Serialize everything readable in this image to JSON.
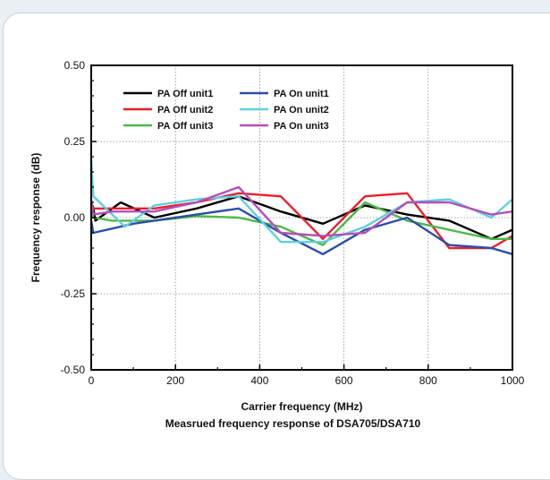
{
  "chart_data": {
    "type": "line",
    "title": "",
    "caption": "Measrued frequency response of DSA705/DSA710",
    "xlabel": "Carrier frequency (MHz)",
    "ylabel": "Frequency response (dB)",
    "xlim": [
      0,
      1000
    ],
    "ylim": [
      -0.5,
      0.5
    ],
    "xticks": [
      0,
      200,
      400,
      600,
      800,
      1000
    ],
    "xtick_labels": [
      "0",
      "200",
      "400",
      "600",
      "800",
      "1000"
    ],
    "yticks": [
      -0.5,
      -0.25,
      0,
      0.25,
      0.5
    ],
    "ytick_labels": [
      "-0.50",
      "-0.25",
      "0.00",
      "0.25",
      "0.50"
    ],
    "grid": true,
    "legend_position": "top-left",
    "series": [
      {
        "name": "PA Off unit1",
        "color": "#000000",
        "points": [
          [
            0,
            0.05
          ],
          [
            5,
            0.03
          ],
          [
            10,
            -0.01
          ],
          [
            70,
            0.05
          ],
          [
            150,
            0.0
          ],
          [
            250,
            0.03
          ],
          [
            350,
            0.07
          ],
          [
            450,
            0.02
          ],
          [
            550,
            -0.02
          ],
          [
            650,
            0.04
          ],
          [
            750,
            0.01
          ],
          [
            850,
            -0.01
          ],
          [
            950,
            -0.07
          ],
          [
            1000,
            -0.04
          ]
        ]
      },
      {
        "name": "PA Off unit2",
        "color": "#e8202a",
        "points": [
          [
            0,
            0.04
          ],
          [
            5,
            0.03
          ],
          [
            50,
            0.03
          ],
          [
            150,
            0.03
          ],
          [
            250,
            0.05
          ],
          [
            350,
            0.08
          ],
          [
            450,
            0.07
          ],
          [
            550,
            -0.07
          ],
          [
            650,
            0.07
          ],
          [
            750,
            0.08
          ],
          [
            850,
            -0.1
          ],
          [
            950,
            -0.1
          ],
          [
            1000,
            -0.06
          ]
        ]
      },
      {
        "name": "PA Off unit3",
        "color": "#4db848",
        "points": [
          [
            0,
            0.03
          ],
          [
            5,
            0.0
          ],
          [
            50,
            -0.01
          ],
          [
            150,
            -0.01
          ],
          [
            250,
            0.005
          ],
          [
            350,
            0.0
          ],
          [
            450,
            -0.03
          ],
          [
            550,
            -0.09
          ],
          [
            650,
            0.05
          ],
          [
            750,
            -0.01
          ],
          [
            850,
            -0.04
          ],
          [
            950,
            -0.07
          ],
          [
            1000,
            -0.07
          ]
        ]
      },
      {
        "name": "PA On unit1",
        "color": "#2b4fa8",
        "points": [
          [
            0,
            -0.01
          ],
          [
            5,
            -0.05
          ],
          [
            100,
            -0.02
          ],
          [
            250,
            0.01
          ],
          [
            350,
            0.03
          ],
          [
            450,
            -0.05
          ],
          [
            550,
            -0.12
          ],
          [
            650,
            -0.04
          ],
          [
            750,
            0.0
          ],
          [
            850,
            -0.09
          ],
          [
            950,
            -0.1
          ],
          [
            1000,
            -0.12
          ]
        ]
      },
      {
        "name": "PA On unit2",
        "color": "#5fcfe0",
        "points": [
          [
            0,
            0.19
          ],
          [
            5,
            0.07
          ],
          [
            80,
            -0.03
          ],
          [
            150,
            0.04
          ],
          [
            250,
            0.06
          ],
          [
            350,
            0.07
          ],
          [
            450,
            -0.08
          ],
          [
            550,
            -0.08
          ],
          [
            650,
            -0.03
          ],
          [
            750,
            0.05
          ],
          [
            850,
            0.06
          ],
          [
            950,
            0.0
          ],
          [
            1000,
            0.06
          ]
        ]
      },
      {
        "name": "PA On unit3",
        "color": "#b34fb8",
        "points": [
          [
            0,
            0.06
          ],
          [
            5,
            0.01
          ],
          [
            50,
            0.02
          ],
          [
            150,
            0.02
          ],
          [
            250,
            0.05
          ],
          [
            350,
            0.1
          ],
          [
            450,
            -0.05
          ],
          [
            550,
            -0.06
          ],
          [
            650,
            -0.05
          ],
          [
            750,
            0.05
          ],
          [
            850,
            0.05
          ],
          [
            950,
            0.01
          ],
          [
            1000,
            0.02
          ]
        ]
      }
    ]
  }
}
